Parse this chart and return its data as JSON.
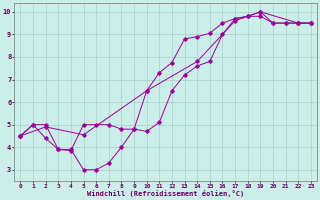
{
  "xlabel": "Windchill (Refroidissement éolien,°C)",
  "bg_color": "#cceee8",
  "grid_color": "#aacccc",
  "line_color": "#990099",
  "xlim": [
    -0.5,
    23.5
  ],
  "ylim": [
    2.5,
    10.4
  ],
  "xticks": [
    0,
    1,
    2,
    3,
    4,
    5,
    6,
    7,
    8,
    9,
    10,
    11,
    12,
    13,
    14,
    15,
    16,
    17,
    18,
    19,
    20,
    21,
    22,
    23
  ],
  "yticks": [
    3,
    4,
    5,
    6,
    7,
    8,
    9,
    10
  ],
  "series1": [
    [
      0,
      4.5
    ],
    [
      1,
      5.0
    ],
    [
      2,
      5.0
    ],
    [
      3,
      3.9
    ],
    [
      4,
      3.9
    ],
    [
      5,
      3.0
    ],
    [
      6,
      3.0
    ],
    [
      7,
      3.3
    ],
    [
      8,
      4.0
    ],
    [
      9,
      4.8
    ],
    [
      10,
      4.7
    ],
    [
      11,
      5.1
    ],
    [
      12,
      6.5
    ],
    [
      13,
      7.2
    ],
    [
      14,
      7.6
    ],
    [
      15,
      7.8
    ],
    [
      16,
      9.0
    ],
    [
      17,
      9.7
    ],
    [
      18,
      9.8
    ],
    [
      19,
      10.0
    ],
    [
      20,
      9.5
    ],
    [
      21,
      9.5
    ],
    [
      22,
      9.5
    ],
    [
      23,
      9.5
    ]
  ],
  "series2": [
    [
      0,
      4.5
    ],
    [
      1,
      5.0
    ],
    [
      2,
      4.4
    ],
    [
      3,
      3.9
    ],
    [
      4,
      3.85
    ],
    [
      5,
      5.0
    ],
    [
      6,
      5.0
    ],
    [
      7,
      5.0
    ],
    [
      8,
      4.8
    ],
    [
      9,
      4.8
    ],
    [
      10,
      6.5
    ],
    [
      11,
      7.3
    ],
    [
      12,
      7.75
    ],
    [
      13,
      8.8
    ],
    [
      14,
      8.9
    ],
    [
      15,
      9.05
    ],
    [
      16,
      9.5
    ],
    [
      17,
      9.7
    ],
    [
      18,
      9.8
    ],
    [
      19,
      9.8
    ],
    [
      20,
      9.5
    ],
    [
      21,
      9.5
    ],
    [
      22,
      9.5
    ],
    [
      23,
      9.5
    ]
  ],
  "series3": [
    [
      0,
      4.5
    ],
    [
      2,
      4.9
    ],
    [
      5,
      4.55
    ],
    [
      10,
      6.5
    ],
    [
      14,
      7.8
    ],
    [
      17,
      9.6
    ],
    [
      19,
      10.0
    ],
    [
      22,
      9.5
    ],
    [
      23,
      9.5
    ]
  ],
  "tick_fontsize": 4.5,
  "xlabel_fontsize": 5.0
}
